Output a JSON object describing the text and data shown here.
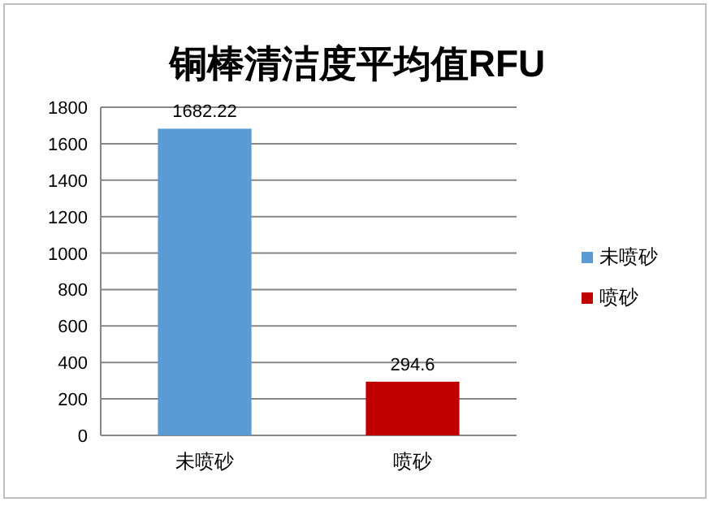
{
  "chart_data": {
    "type": "bar",
    "title": "铜棒清洁度平均值RFU",
    "categories": [
      "未喷砂",
      "喷砂"
    ],
    "series": [
      {
        "name": "未喷砂",
        "color": "#5b9bd5",
        "values": [
          1682.22,
          null
        ]
      },
      {
        "name": "喷砂",
        "color": "#c00000",
        "values": [
          null,
          294.6
        ]
      }
    ],
    "stacked": true,
    "ylim": [
      0,
      1800
    ],
    "yticks": [
      0,
      200,
      400,
      600,
      800,
      1000,
      1200,
      1400,
      1600,
      1800
    ],
    "grid": "y",
    "legend": "right",
    "data_labels": true
  }
}
